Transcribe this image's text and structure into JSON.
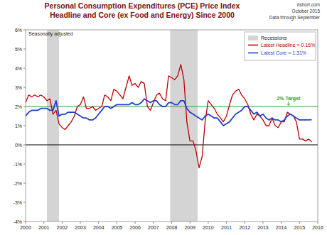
{
  "chart_data": {
    "type": "line",
    "title": "Personal Consumption Expenditures (PCE) Price Index",
    "subtitle": "Headline and Core (ex Food and Energy) Since 2000",
    "source": "dshort.com",
    "release": "October 2015",
    "data_through": "Data through September",
    "note": "Seasonally adjusted",
    "x": [
      2000,
      2000.17,
      2000.33,
      2000.5,
      2000.67,
      2000.83,
      2001,
      2001.17,
      2001.33,
      2001.5,
      2001.67,
      2001.83,
      2002,
      2002.17,
      2002.33,
      2002.5,
      2002.67,
      2002.83,
      2003,
      2003.17,
      2003.33,
      2003.5,
      2003.67,
      2003.83,
      2004,
      2004.17,
      2004.33,
      2004.5,
      2004.67,
      2004.83,
      2005,
      2005.17,
      2005.33,
      2005.5,
      2005.67,
      2005.83,
      2006,
      2006.17,
      2006.33,
      2006.5,
      2006.67,
      2006.83,
      2007,
      2007.17,
      2007.33,
      2007.5,
      2007.67,
      2007.83,
      2008,
      2008.17,
      2008.33,
      2008.5,
      2008.67,
      2008.83,
      2009,
      2009.17,
      2009.33,
      2009.5,
      2009.67,
      2009.83,
      2010,
      2010.17,
      2010.33,
      2010.5,
      2010.67,
      2010.83,
      2011,
      2011.17,
      2011.33,
      2011.5,
      2011.67,
      2011.83,
      2012,
      2012.17,
      2012.33,
      2012.5,
      2012.67,
      2012.83,
      2013,
      2013.17,
      2013.33,
      2013.5,
      2013.67,
      2013.83,
      2014,
      2014.17,
      2014.33,
      2014.5,
      2014.67,
      2014.83,
      2015,
      2015.17,
      2015.33,
      2015.5,
      2015.67
    ],
    "series": [
      {
        "name": "Latest Headline = 0.16%",
        "color": "#c00000",
        "values": [
          2.2,
          2.6,
          2.5,
          2.6,
          2.5,
          2.6,
          2.5,
          2.3,
          2.4,
          1.6,
          1.8,
          1.1,
          0.9,
          0.8,
          1.0,
          1.2,
          1.5,
          2.0,
          2.1,
          2.5,
          1.9,
          1.9,
          2.0,
          1.8,
          1.9,
          2.0,
          2.6,
          2.5,
          2.3,
          2.9,
          2.8,
          2.6,
          2.4,
          3.0,
          3.6,
          3.1,
          3.2,
          3.0,
          3.3,
          3.2,
          2.0,
          1.8,
          2.2,
          2.6,
          2.7,
          2.4,
          2.3,
          3.6,
          3.5,
          3.4,
          3.6,
          4.2,
          3.4,
          1.2,
          0.2,
          0.2,
          -0.3,
          -1.2,
          -0.6,
          1.2,
          2.3,
          2.1,
          1.9,
          1.6,
          1.4,
          1.2,
          1.5,
          2.1,
          2.6,
          2.8,
          2.9,
          2.6,
          2.4,
          2.1,
          1.6,
          1.3,
          1.6,
          1.5,
          1.3,
          1.0,
          1.0,
          1.4,
          1.0,
          0.9,
          1.2,
          1.2,
          1.7,
          1.6,
          1.5,
          1.2,
          0.3,
          0.3,
          0.2,
          0.3,
          0.16
        ]
      },
      {
        "name": "Latest Core = 1.31%",
        "color": "#1f3fd0",
        "values": [
          1.5,
          1.7,
          1.8,
          1.8,
          1.8,
          1.9,
          1.9,
          1.9,
          1.8,
          1.8,
          2.3,
          1.5,
          1.6,
          1.6,
          1.7,
          1.7,
          1.7,
          1.6,
          1.5,
          1.4,
          1.4,
          1.3,
          1.3,
          1.4,
          1.6,
          1.8,
          2.0,
          2.0,
          1.9,
          2.0,
          2.1,
          2.1,
          2.1,
          2.1,
          2.1,
          2.2,
          2.1,
          2.1,
          2.2,
          2.4,
          2.3,
          2.2,
          2.3,
          2.3,
          2.1,
          2.0,
          2.0,
          2.2,
          2.2,
          2.1,
          2.1,
          2.3,
          2.3,
          1.9,
          1.7,
          1.6,
          1.5,
          1.4,
          1.3,
          1.5,
          1.6,
          1.5,
          1.4,
          1.4,
          1.2,
          1.0,
          1.1,
          1.2,
          1.4,
          1.6,
          1.7,
          1.8,
          2.0,
          2.0,
          1.8,
          1.6,
          1.7,
          1.5,
          1.6,
          1.4,
          1.3,
          1.4,
          1.3,
          1.3,
          1.2,
          1.3,
          1.5,
          1.6,
          1.5,
          1.4,
          1.3,
          1.3,
          1.3,
          1.3,
          1.31
        ]
      }
    ],
    "recessions": {
      "label": "Recessions",
      "color": "#d4d4d4",
      "periods": [
        [
          2001.17,
          2001.83
        ],
        [
          2007.92,
          2009.42
        ]
      ]
    },
    "target": {
      "value": 2,
      "label": "2% Target",
      "color": "#2e9e2e"
    },
    "baseline": 0,
    "xlim": [
      2000,
      2016
    ],
    "xticks": [
      2000,
      2001,
      2002,
      2003,
      2004,
      2005,
      2006,
      2007,
      2008,
      2009,
      2010,
      2011,
      2012,
      2013,
      2014,
      2015,
      2016
    ],
    "ylim": [
      -4,
      6
    ],
    "yticks": [
      {
        "value": -4,
        "label": "-4%"
      },
      {
        "value": -3,
        "label": "-3%"
      },
      {
        "value": -2,
        "label": "-2%"
      },
      {
        "value": -1,
        "label": "-1%"
      },
      {
        "value": 0,
        "label": "0%"
      },
      {
        "value": 1,
        "label": "1%"
      },
      {
        "value": 2,
        "label": "2%"
      },
      {
        "value": 3,
        "label": "3%"
      },
      {
        "value": 4,
        "label": "4%"
      },
      {
        "value": 5,
        "label": "5%"
      },
      {
        "value": 6,
        "label": "6%"
      }
    ],
    "grid": false,
    "legend": "upper right"
  }
}
